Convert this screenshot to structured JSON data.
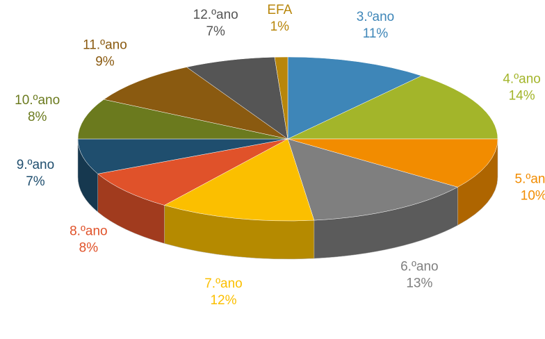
{
  "chart_data": {
    "type": "pie",
    "categories": [
      "3.ºano",
      "4.ºano",
      "5.ºano",
      "6.ºano",
      "7.ºano",
      "8.ºano",
      "9.ºano",
      "10.ºano",
      "11.ºano",
      "12.ºano",
      "EFA"
    ],
    "values": [
      11,
      14,
      10,
      13,
      12,
      8,
      7,
      8,
      9,
      7,
      1
    ],
    "value_labels": [
      "11%",
      "14%",
      "10%",
      "13%",
      "12%",
      "8%",
      "7%",
      "8%",
      "9%",
      "7%",
      "1%"
    ],
    "colors": [
      "#3e86b8",
      "#a3b52a",
      "#f28c00",
      "#7f7f7f",
      "#fbbf00",
      "#e0522a",
      "#1f4e6e",
      "#6b7a1e",
      "#8a5a10",
      "#555555",
      "#b8860b"
    ]
  }
}
